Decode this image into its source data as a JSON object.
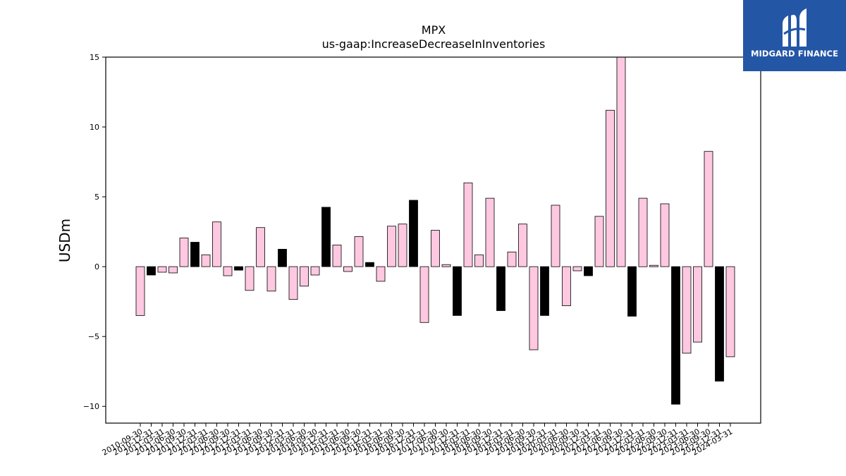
{
  "brand": {
    "name": "MIDGARD FINANCE",
    "color": "#2456a6",
    "icon": "midgard-logo-icon"
  },
  "chart_data": {
    "type": "bar",
    "title": "MPX",
    "subtitle": "us-gaap:IncreaseDecreaseInInventories",
    "ylabel": "USDm",
    "xlabel": "",
    "ylim": [
      -11.2,
      15
    ],
    "yticks": [
      -10,
      -5,
      0,
      5,
      10,
      15
    ],
    "grid": false,
    "colors": {
      "positive_quarter": "#ffc8e1",
      "q4": "#000000",
      "edge": "#000000"
    },
    "categories": [
      "2010-09-30",
      "2010-12-31",
      "2011-03-31",
      "2011-06-30",
      "2011-09-30",
      "2011-12-31",
      "2012-03-31",
      "2012-06-30",
      "2012-09-30",
      "2012-12-31",
      "2013-03-31",
      "2013-06-30",
      "2013-09-30",
      "2013-12-31",
      "2014-03-31",
      "2014-06-30",
      "2014-09-30",
      "2014-12-31",
      "2015-03-31",
      "2015-06-30",
      "2015-09-30",
      "2015-12-31",
      "2016-03-31",
      "2016-06-30",
      "2016-09-30",
      "2016-12-31",
      "2017-03-31",
      "2017-06-30",
      "2017-09-30",
      "2017-12-31",
      "2018-03-31",
      "2018-06-30",
      "2018-09-30",
      "2018-12-31",
      "2019-03-31",
      "2019-06-30",
      "2019-09-30",
      "2019-12-31",
      "2020-03-31",
      "2020-06-30",
      "2020-09-30",
      "2020-12-31",
      "2021-03-31",
      "2021-06-30",
      "2021-09-30",
      "2021-12-31",
      "2022-03-31",
      "2022-06-30",
      "2022-09-30",
      "2022-12-31",
      "2023-03-31",
      "2023-06-30",
      "2023-09-30",
      "2023-12-31",
      "2024-03-31"
    ],
    "series": [
      {
        "values": [
          -3.5,
          -0.6,
          -0.4,
          -0.45,
          2.05,
          1.75,
          0.85,
          3.2,
          -0.65,
          -0.25,
          -1.7,
          2.8,
          -1.75,
          1.25,
          -2.35,
          -1.4,
          -0.6,
          4.25,
          1.55,
          -0.35,
          2.15,
          0.3,
          -1.05,
          2.9,
          3.05,
          4.75,
          -4.0,
          2.6,
          0.15,
          -3.5,
          6.0,
          0.85,
          4.9,
          -3.15,
          1.05,
          3.05,
          -5.95,
          -3.5,
          4.4,
          -2.8,
          -0.3,
          -0.65,
          3.6,
          11.2,
          15.7,
          -3.55,
          4.9,
          0.1,
          4.5,
          -9.85,
          -6.2,
          -5.4,
          8.25,
          -8.2,
          -6.45
        ],
        "highlight": [
          false,
          true,
          false,
          false,
          false,
          true,
          false,
          false,
          false,
          true,
          false,
          false,
          false,
          true,
          false,
          false,
          false,
          true,
          false,
          false,
          false,
          true,
          false,
          false,
          false,
          true,
          false,
          false,
          false,
          true,
          false,
          false,
          false,
          true,
          false,
          false,
          false,
          true,
          false,
          false,
          false,
          true,
          false,
          false,
          false,
          true,
          false,
          false,
          false,
          true,
          false,
          false,
          false,
          true,
          false
        ]
      }
    ]
  }
}
